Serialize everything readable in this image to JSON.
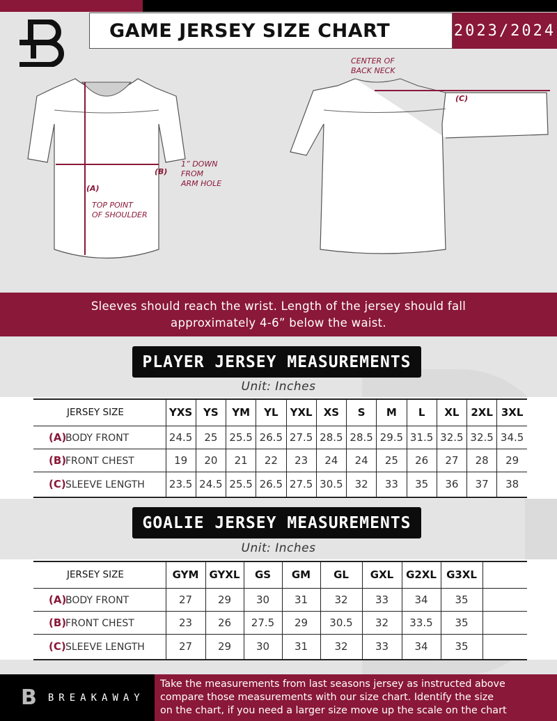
{
  "header": {
    "title": "GAME JERSEY SIZE CHART",
    "season": "2023/2024",
    "logo": "B"
  },
  "diagram": {
    "center_back_neck": [
      "CENTER OF",
      "BACK NECK"
    ],
    "label_a": "(A)",
    "label_b": "(B)",
    "label_c": "(C)",
    "down_from_arm": [
      "1” DOWN",
      "FROM",
      "ARM HOLE"
    ],
    "top_point": [
      "TOP POINT",
      "OF SHOULDER"
    ]
  },
  "banner": {
    "lines": [
      "Sleeves should reach the wrist. Length of the jersey should fall",
      "approximately 4-6” below the waist."
    ]
  },
  "player": {
    "heading": "PLAYER JERSEY MEASUREMENTS",
    "unit": "Unit: Inches",
    "size_label": "JERSEY SIZE",
    "sizes": [
      "YXS",
      "YS",
      "YM",
      "YL",
      "YXL",
      "XS",
      "S",
      "M",
      "L",
      "XL",
      "2XL",
      "3XL"
    ],
    "rows": [
      {
        "letter": "(A)",
        "name": "BODY FRONT",
        "values": [
          "24.5",
          "25",
          "25.5",
          "26.5",
          "27.5",
          "28.5",
          "28.5",
          "29.5",
          "31.5",
          "32.5",
          "32.5",
          "34.5"
        ]
      },
      {
        "letter": "(B)",
        "name": "FRONT CHEST",
        "values": [
          "19",
          "20",
          "21",
          "22",
          "23",
          "24",
          "24",
          "25",
          "26",
          "27",
          "28",
          "29"
        ]
      },
      {
        "letter": "(C)",
        "name": "SLEEVE LENGTH",
        "values": [
          "23.5",
          "24.5",
          "25.5",
          "26.5",
          "27.5",
          "30.5",
          "32",
          "33",
          "35",
          "36",
          "37",
          "38"
        ]
      }
    ]
  },
  "goalie": {
    "heading": "GOALIE JERSEY MEASUREMENTS",
    "unit": "Unit: Inches",
    "size_label": "JERSEY SIZE",
    "sizes": [
      "GYM",
      "GYXL",
      "GS",
      "GM",
      "GL",
      "GXL",
      "G2XL",
      "G3XL",
      ""
    ],
    "rows": [
      {
        "letter": "(A)",
        "name": "BODY FRONT",
        "values": [
          "27",
          "29",
          "30",
          "31",
          "32",
          "33",
          "34",
          "35",
          ""
        ]
      },
      {
        "letter": "(B)",
        "name": "FRONT CHEST",
        "values": [
          "23",
          "26",
          "27.5",
          "29",
          "30.5",
          "32",
          "33.5",
          "35",
          ""
        ]
      },
      {
        "letter": "(C)",
        "name": "SLEEVE LENGTH",
        "values": [
          "27",
          "29",
          "30",
          "31",
          "32",
          "33",
          "34",
          "35",
          ""
        ]
      }
    ]
  },
  "footer": {
    "brand": "BREAKAWAY",
    "text": [
      "Take the measurements from last seasons jersey as instructed above",
      "compare those measurements  with our size chart. Identify the size",
      "on the chart, if you need a larger size move up the scale on the chart"
    ]
  },
  "colors": {
    "maroon": "#8a1838",
    "black": "#0c0c0c",
    "background": "#e4e4e5"
  }
}
